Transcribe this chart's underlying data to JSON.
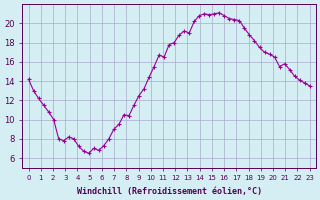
{
  "xlabel": "Windchill (Refroidissement éolien,°C)",
  "bg_color": "#d4eef4",
  "grid_color": "#aaaacc",
  "line_color": "#990099",
  "marker_color": "#990099",
  "ylim": [
    5,
    22
  ],
  "yticks": [
    6,
    8,
    10,
    12,
    14,
    16,
    18,
    20
  ],
  "xlim": [
    -0.5,
    23.5
  ],
  "xticks": [
    0,
    1,
    2,
    3,
    4,
    5,
    6,
    7,
    8,
    9,
    10,
    11,
    12,
    13,
    14,
    15,
    16,
    17,
    18,
    19,
    20,
    21,
    22,
    23
  ],
  "values": [
    14.2,
    13.0,
    12.2,
    11.5,
    10.8,
    10.0,
    8.0,
    7.8,
    8.2,
    8.0,
    7.2,
    6.7,
    6.5,
    7.0,
    6.8,
    7.3,
    8.0,
    9.0,
    9.5,
    10.5,
    10.4,
    11.5,
    12.5,
    13.2,
    14.4,
    15.5,
    16.7,
    16.5,
    17.8,
    18.0,
    18.8,
    19.2,
    19.0,
    20.2,
    20.8,
    21.0,
    20.9,
    21.0,
    21.1,
    20.8,
    20.5,
    20.4,
    20.3,
    19.5,
    18.8,
    18.2,
    17.5,
    17.0,
    16.8,
    16.5,
    15.5,
    15.8,
    15.2,
    14.5,
    14.1,
    13.8,
    13.5
  ]
}
